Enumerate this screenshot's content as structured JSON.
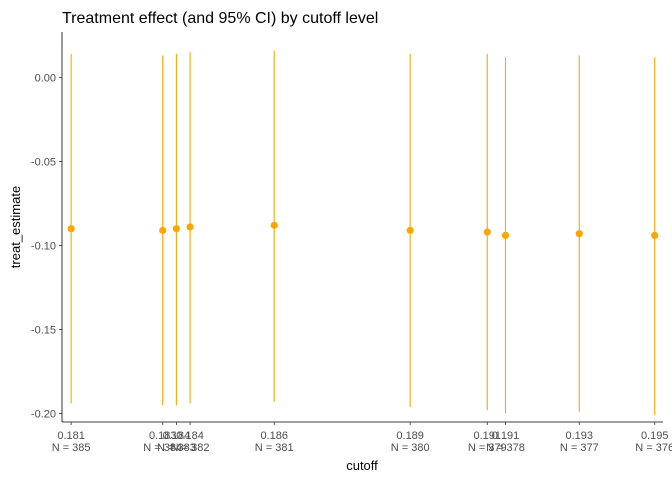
{
  "chart_data": {
    "type": "scatter",
    "title": "Treatment effect (and 95% CI) by cutoff level",
    "xlabel": "cutoff",
    "ylabel": "treat_estimate",
    "ylim": [
      -0.205,
      0.027
    ],
    "y_ticks": [
      0.0,
      -0.05,
      -0.1,
      -0.15,
      -0.2
    ],
    "y_tick_labels": [
      "0.00",
      "-0.05",
      "-0.10",
      "-0.15",
      "-0.20"
    ],
    "xlim": [
      0.1808,
      0.1953
    ],
    "grid": false,
    "legend": "none",
    "color": "#FFA500",
    "points": [
      {
        "x": 0.18102,
        "label": "0.181\nN = 385",
        "estimate": -0.09,
        "ci_low": -0.194,
        "ci_high": 0.014
      },
      {
        "x": 0.18323,
        "label": "0.183\nN = 384",
        "estimate": -0.091,
        "ci_low": -0.195,
        "ci_high": 0.013
      },
      {
        "x": 0.18356,
        "label": "0.184\nN = 383",
        "estimate": -0.09,
        "ci_low": -0.195,
        "ci_high": 0.014
      },
      {
        "x": 0.18389,
        "label": "0.184\nN = 382",
        "estimate": -0.089,
        "ci_low": -0.194,
        "ci_high": 0.015
      },
      {
        "x": 0.18592,
        "label": "0.186\nN = 381",
        "estimate": -0.088,
        "ci_low": -0.193,
        "ci_high": 0.016
      },
      {
        "x": 0.1892,
        "label": "0.189\nN = 380",
        "estimate": -0.091,
        "ci_low": -0.196,
        "ci_high": 0.014
      },
      {
        "x": 0.19106,
        "label": "0.191\nN = 379",
        "estimate": -0.092,
        "ci_low": -0.198,
        "ci_high": 0.014
      },
      {
        "x": 0.1915,
        "label": "0.191\nN = 378",
        "estimate": -0.094,
        "ci_low": -0.2,
        "ci_high": 0.012
      },
      {
        "x": 0.19328,
        "label": "0.193\nN = 377",
        "estimate": -0.093,
        "ci_low": -0.199,
        "ci_high": 0.013
      },
      {
        "x": 0.1951,
        "label": "0.195\nN = 376",
        "estimate": -0.094,
        "ci_low": -0.201,
        "ci_high": 0.012
      }
    ]
  }
}
